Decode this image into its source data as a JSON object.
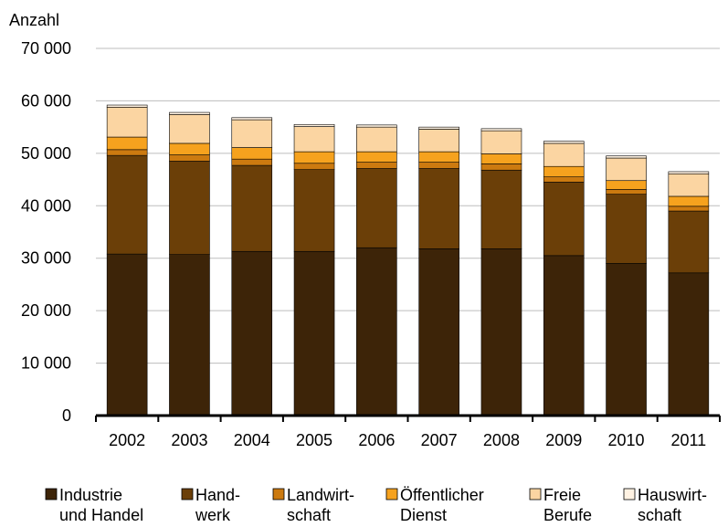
{
  "chart_data": {
    "type": "bar",
    "stacked": true,
    "ylabel": "Anzahl",
    "ylim": [
      0,
      70000
    ],
    "ytick_values": [
      0,
      10000,
      20000,
      30000,
      40000,
      50000,
      60000,
      70000
    ],
    "ytick_labels": [
      "0",
      "10 000",
      "20 000",
      "30 000",
      "40 000",
      "50 000",
      "60 000",
      "70 000"
    ],
    "grid": true,
    "legend_position": "bottom",
    "categories": [
      "2002",
      "2003",
      "2004",
      "2005",
      "2006",
      "2007",
      "2008",
      "2009",
      "2010",
      "2011"
    ],
    "series": [
      {
        "name": "Industrie und Handel",
        "legend_lines": [
          "Industrie",
          "und Handel"
        ],
        "color": "#3d2408",
        "values": [
          30800,
          30700,
          31300,
          31300,
          32000,
          31800,
          31800,
          30500,
          29000,
          27200
        ]
      },
      {
        "name": "Handwerk",
        "legend_lines": [
          "Hand-",
          "werk"
        ],
        "color": "#6b3f08",
        "values": [
          18800,
          17800,
          16400,
          15600,
          15100,
          15300,
          15000,
          14000,
          13200,
          11800
        ]
      },
      {
        "name": "Landwirtschaft",
        "legend_lines": [
          "Landwirt-",
          "schaft"
        ],
        "color": "#cc7a10",
        "values": [
          1100,
          1200,
          1200,
          1200,
          1200,
          1200,
          1200,
          1000,
          900,
          900
        ]
      },
      {
        "name": "Öffentlicher Dienst",
        "legend_lines": [
          "Öffentlicher",
          "Dienst"
        ],
        "color": "#f6a21e",
        "values": [
          2400,
          2200,
          2200,
          2200,
          2000,
          2000,
          1900,
          2000,
          1700,
          1900
        ]
      },
      {
        "name": "Freie Berufe",
        "legend_lines": [
          "Freie",
          "Berufe"
        ],
        "color": "#fbd5a2",
        "values": [
          5700,
          5500,
          5300,
          4800,
          4700,
          4300,
          4400,
          4400,
          4300,
          4300
        ]
      },
      {
        "name": "Hauswirtschaft",
        "legend_lines": [
          "Hauswirt-",
          "schaft"
        ],
        "color": "#fff2e2",
        "values": [
          400,
          400,
          400,
          400,
          400,
          400,
          400,
          400,
          400,
          400
        ]
      }
    ]
  }
}
